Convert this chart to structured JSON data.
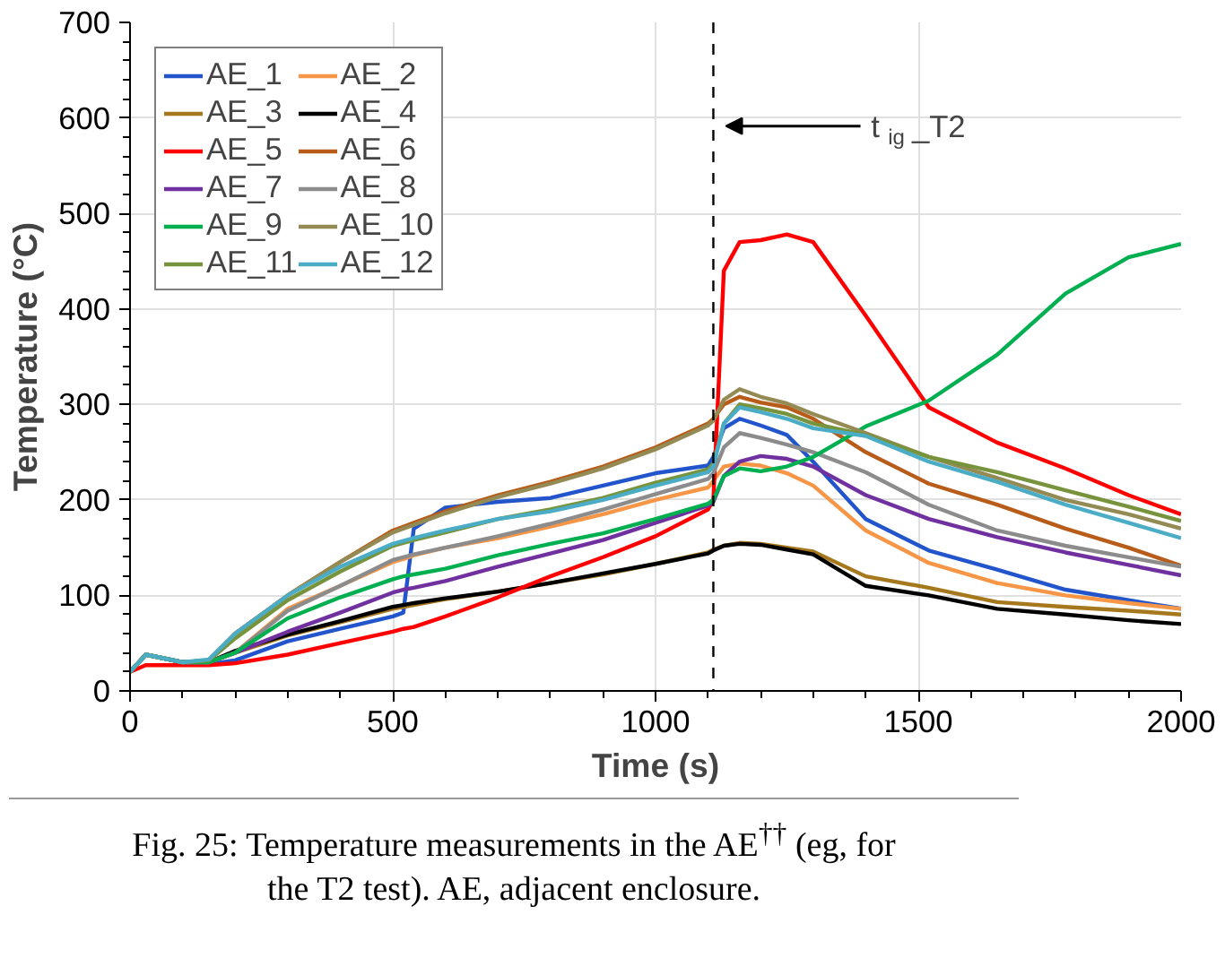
{
  "chart_data": {
    "type": "line",
    "xlabel": "Time (s)",
    "ylabel": "Temperature (°C)",
    "x": [
      0,
      30,
      100,
      150,
      200,
      300,
      400,
      500,
      520,
      540,
      600,
      700,
      800,
      900,
      1000,
      1100,
      1110,
      1130,
      1160,
      1200,
      1250,
      1300,
      1400,
      1520,
      1650,
      1780,
      1900,
      2000
    ],
    "series": [
      {
        "name": "AE_1",
        "color": "#2255cc",
        "values": [
          null,
          null,
          30,
          28,
          32,
          52,
          65,
          78,
          82,
          170,
          192,
          198,
          202,
          215,
          228,
          236,
          245,
          275,
          285,
          278,
          268,
          240,
          180,
          147,
          127,
          106,
          95,
          86
        ]
      },
      {
        "name": "AE_2",
        "color": "#f79646",
        "values": [
          null,
          null,
          null,
          30,
          40,
          86,
          110,
          135,
          138,
          142,
          150,
          160,
          172,
          185,
          200,
          213,
          220,
          235,
          238,
          236,
          228,
          215,
          168,
          134,
          113,
          100,
          92,
          86
        ]
      },
      {
        "name": "AE_3",
        "color": "#a6781e",
        "values": [
          20,
          38,
          30,
          30,
          40,
          58,
          72,
          86,
          88,
          90,
          96,
          104,
          113,
          122,
          133,
          145,
          148,
          152,
          155,
          154,
          150,
          146,
          120,
          108,
          93,
          88,
          84,
          80
        ]
      },
      {
        "name": "AE_4",
        "color": "#000000",
        "values": [
          20,
          38,
          30,
          30,
          42,
          59,
          73,
          88,
          90,
          92,
          97,
          104,
          113,
          123,
          133,
          144,
          147,
          152,
          154,
          153,
          148,
          143,
          110,
          100,
          86,
          80,
          74,
          70
        ]
      },
      {
        "name": "AE_5",
        "color": "#ff0000",
        "values": [
          20,
          27,
          27,
          27,
          29,
          38,
          50,
          62,
          65,
          67,
          78,
          98,
          120,
          140,
          162,
          190,
          200,
          440,
          470,
          472,
          478,
          470,
          393,
          297,
          260,
          233,
          205,
          185
        ]
      },
      {
        "name": "AE_6",
        "color": "#b85c1a",
        "values": [
          20,
          38,
          30,
          32,
          60,
          100,
          135,
          168,
          172,
          176,
          188,
          205,
          219,
          235,
          255,
          280,
          285,
          300,
          308,
          302,
          297,
          285,
          250,
          217,
          195,
          170,
          150,
          131
        ]
      },
      {
        "name": "AE_7",
        "color": "#7030a0",
        "values": [
          null,
          null,
          30,
          30,
          40,
          62,
          82,
          103,
          106,
          108,
          115,
          130,
          144,
          158,
          176,
          194,
          198,
          225,
          240,
          246,
          243,
          235,
          205,
          180,
          161,
          145,
          132,
          121
        ]
      },
      {
        "name": "AE_8",
        "color": "#8c8c8c",
        "values": [
          20,
          38,
          30,
          30,
          40,
          84,
          110,
          137,
          140,
          143,
          150,
          162,
          175,
          190,
          206,
          222,
          228,
          255,
          270,
          265,
          258,
          250,
          229,
          195,
          168,
          152,
          140,
          130
        ]
      },
      {
        "name": "AE_9",
        "color": "#00b050",
        "values": [
          20,
          38,
          30,
          30,
          40,
          76,
          98,
          117,
          120,
          122,
          128,
          142,
          154,
          165,
          180,
          196,
          200,
          225,
          233,
          230,
          235,
          245,
          277,
          304,
          352,
          416,
          454,
          468
        ]
      },
      {
        "name": "AE_10",
        "color": "#948a54",
        "values": [
          20,
          38,
          30,
          32,
          60,
          100,
          135,
          166,
          170,
          174,
          186,
          203,
          217,
          233,
          253,
          278,
          283,
          305,
          316,
          308,
          301,
          290,
          270,
          245,
          223,
          200,
          185,
          170
        ]
      },
      {
        "name": "AE_11",
        "color": "#77933c",
        "values": [
          20,
          38,
          30,
          32,
          55,
          95,
          125,
          152,
          155,
          158,
          166,
          180,
          190,
          202,
          218,
          232,
          238,
          280,
          300,
          296,
          290,
          280,
          268,
          245,
          229,
          210,
          193,
          178
        ]
      },
      {
        "name": "AE_12",
        "color": "#4bacc6",
        "values": [
          20,
          38,
          30,
          33,
          60,
          100,
          130,
          154,
          157,
          160,
          168,
          180,
          188,
          200,
          215,
          229,
          235,
          280,
          297,
          292,
          285,
          275,
          267,
          240,
          219,
          195,
          176,
          160
        ]
      }
    ],
    "xlim": [
      0,
      2000
    ],
    "xticks": [
      0,
      500,
      1000,
      1500,
      2000
    ],
    "ylim": [
      0,
      700
    ],
    "yticks": [
      0,
      100,
      200,
      300,
      400,
      500,
      600,
      700
    ],
    "grid": true,
    "legend": "top left",
    "line_style": "solid",
    "ref_lines": [
      {
        "axis": "x",
        "value": 1110,
        "label": "t$_{ig}$_T2",
        "color": "#000000",
        "line_style": "dashed"
      }
    ],
    "annotations": [
      "Fig. 25: Temperature measurements in the AE$^{††}$ (eg, for the T2 test). AE, adjacent enclosure."
    ]
  }
}
